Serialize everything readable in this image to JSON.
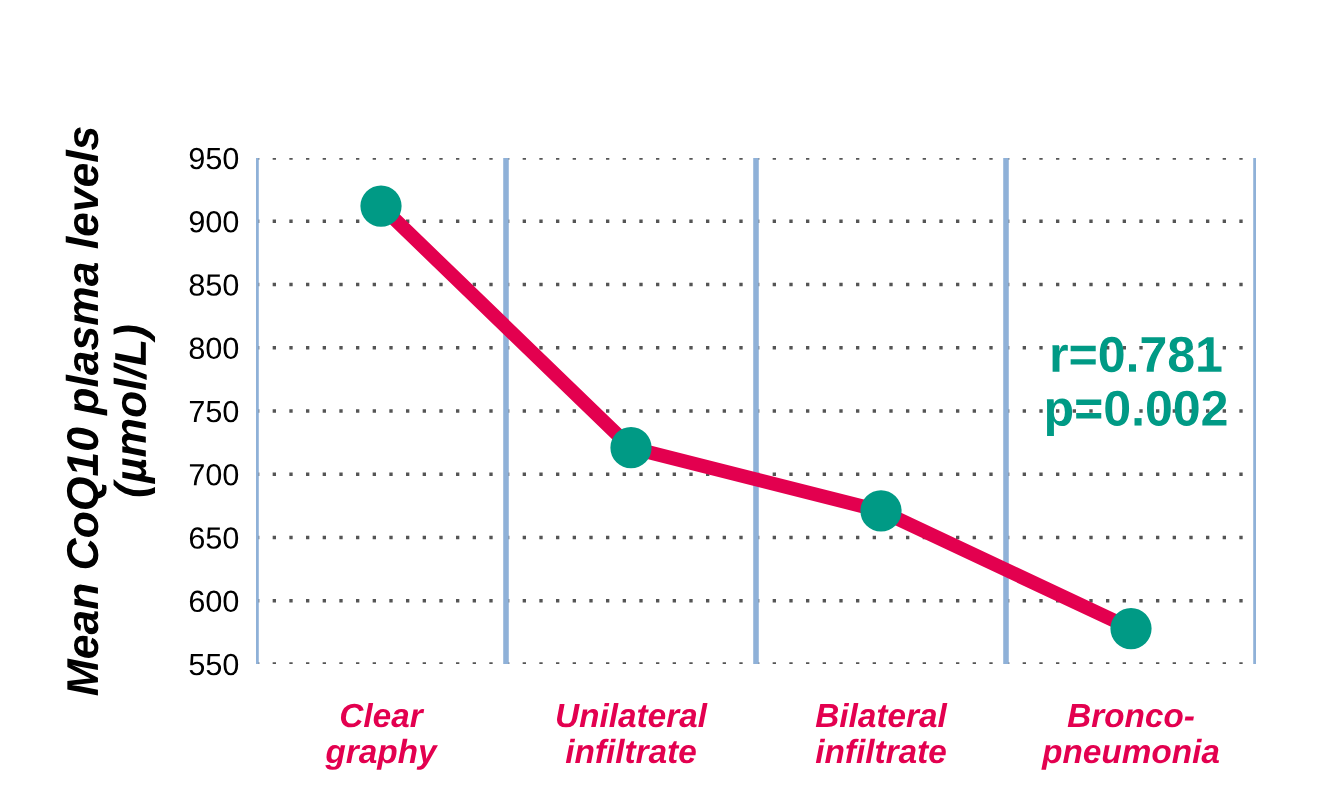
{
  "chart_data": {
    "type": "line",
    "ylabel": "Mean CoQ10 plasma levels\n(µmol/L)",
    "categories": [
      "Clear\ngraphy",
      "Unilateral\ninfiltrate",
      "Bilateral\ninfiltrate",
      "Bronco-\npneumonia"
    ],
    "series": [
      {
        "color": "#e3004f",
        "colors": [
          "#009a85",
          "#009a85",
          "#009a85",
          "#009a85"
        ],
        "values": [
          912,
          721,
          671,
          578
        ]
      }
    ],
    "ylim": [
      550,
      950
    ],
    "yticks": [
      550,
      600,
      650,
      700,
      750,
      800,
      850,
      900,
      950
    ],
    "grid": true,
    "marker": "circle",
    "line_style": "solid",
    "annotations": [
      "r=0.781\np=0.002"
    ]
  }
}
